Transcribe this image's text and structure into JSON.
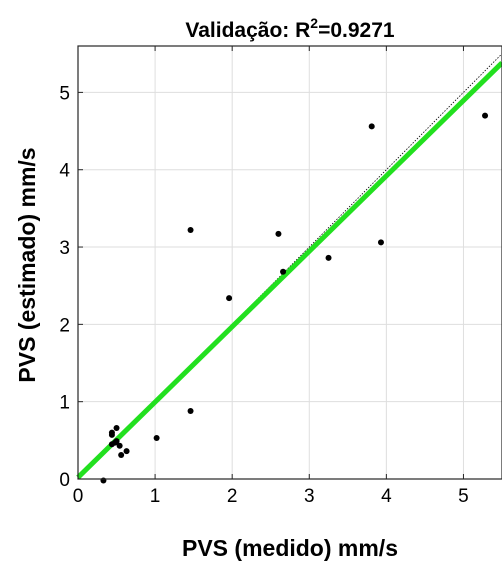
{
  "chart_data": {
    "type": "scatter",
    "title_prefix": "Validação: R",
    "title_sup": "2",
    "title_value": "=0.9271",
    "xlabel": "PVS (medido) mm/s",
    "ylabel": "PVS (estimado) mm/s",
    "xlim": [
      0,
      5.5
    ],
    "ylim": [
      0,
      5.6
    ],
    "xticks": [
      0,
      1,
      2,
      3,
      4,
      5
    ],
    "yticks": [
      0,
      1,
      2,
      3,
      4,
      5
    ],
    "grid": true,
    "points": [
      {
        "x": 0.33,
        "y": -0.02
      },
      {
        "x": 0.44,
        "y": 0.45
      },
      {
        "x": 0.44,
        "y": 0.6
      },
      {
        "x": 0.44,
        "y": 0.57
      },
      {
        "x": 0.48,
        "y": 0.47
      },
      {
        "x": 0.5,
        "y": 0.66
      },
      {
        "x": 0.5,
        "y": 0.49
      },
      {
        "x": 0.54,
        "y": 0.43
      },
      {
        "x": 0.56,
        "y": 0.31
      },
      {
        "x": 0.63,
        "y": 0.36
      },
      {
        "x": 1.02,
        "y": 0.53
      },
      {
        "x": 1.46,
        "y": 0.88
      },
      {
        "x": 1.46,
        "y": 3.22
      },
      {
        "x": 1.96,
        "y": 2.34
      },
      {
        "x": 2.6,
        "y": 3.17
      },
      {
        "x": 2.66,
        "y": 2.68
      },
      {
        "x": 3.25,
        "y": 2.86
      },
      {
        "x": 3.81,
        "y": 4.56
      },
      {
        "x": 3.93,
        "y": 3.06
      },
      {
        "x": 5.28,
        "y": 4.7
      }
    ],
    "fit_line": {
      "slope": 0.975,
      "intercept": 0.02,
      "color": "#22e01f"
    },
    "identity_line": {
      "slope": 1,
      "intercept": 0,
      "color": "#000000"
    },
    "marker_color": "#000000"
  }
}
